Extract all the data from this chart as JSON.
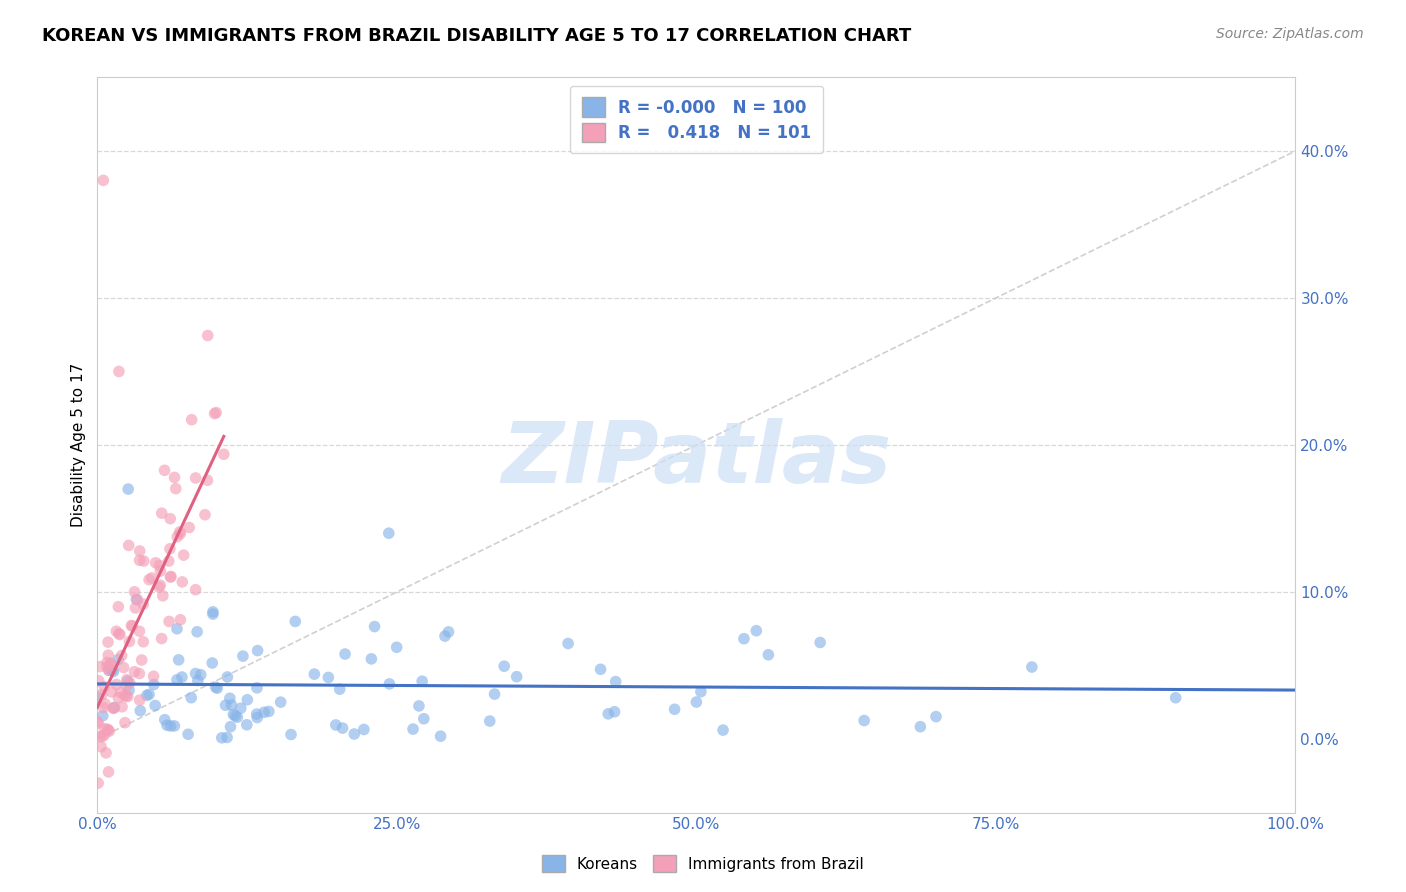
{
  "title": "KOREAN VS IMMIGRANTS FROM BRAZIL DISABILITY AGE 5 TO 17 CORRELATION CHART",
  "source": "Source: ZipAtlas.com",
  "xlabel": "",
  "ylabel": "Disability Age 5 to 17",
  "xlim": [
    0.0,
    1.0
  ],
  "ylim": [
    -0.05,
    0.45
  ],
  "xticks": [
    0.0,
    0.25,
    0.5,
    0.75,
    1.0
  ],
  "xtick_labels": [
    "0.0%",
    "25.0%",
    "50.0%",
    "75.0%",
    "100.0%"
  ],
  "yticks": [
    0.0,
    0.1,
    0.2,
    0.3,
    0.4
  ],
  "ytick_labels": [
    "0.0%",
    "10.0%",
    "20.0%",
    "30.0%",
    "40.0%"
  ],
  "korean_R": "-0.000",
  "korean_N": 100,
  "brazil_R": "0.418",
  "brazil_N": 101,
  "korean_color": "#89b4e8",
  "brazil_color": "#f4a0b8",
  "korean_line_color": "#4472c4",
  "brazil_line_color": "#e06080",
  "diag_line_color": "#c8c8c8",
  "background_color": "#ffffff",
  "grid_color": "#d8d8d8",
  "legend_label_korean": "Koreans",
  "legend_label_brazil": "Immigrants from Brazil",
  "title_fontsize": 13,
  "axis_label_fontsize": 11,
  "tick_fontsize": 11,
  "source_fontsize": 10,
  "watermark_color": "#ccdff5",
  "watermark_alpha": 0.7
}
